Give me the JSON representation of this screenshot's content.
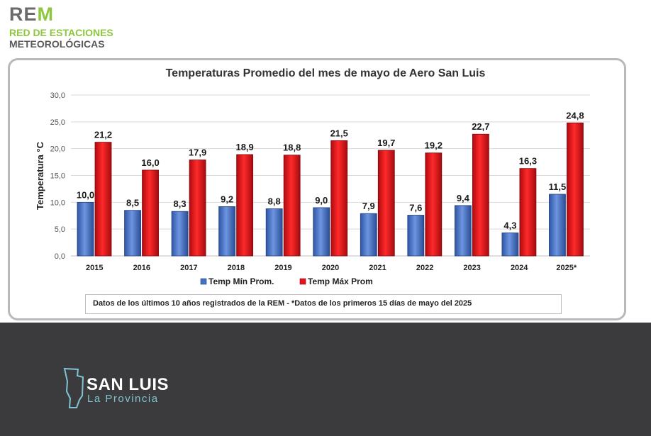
{
  "header": {
    "logo_main": "RE",
    "logo_accent": "M",
    "logo_line1": "RED DE ESTACIONES",
    "logo_line2": "METEOROLÓGICAS"
  },
  "chart_data": {
    "type": "bar",
    "title": "Temperaturas Promedio del mes de mayo de Aero San Luis",
    "ylabel": "Temperatura °C",
    "xlabel": "",
    "ylim": [
      0,
      30
    ],
    "yticks": [
      "0,0",
      "5,0",
      "10,0",
      "15,0",
      "20,0",
      "25,0",
      "30,0"
    ],
    "ytick_values": [
      0,
      5,
      10,
      15,
      20,
      25,
      30
    ],
    "categories": [
      "2015",
      "2016",
      "2017",
      "2018",
      "2019",
      "2020",
      "2021",
      "2022",
      "2023",
      "2024",
      "2025*"
    ],
    "series": [
      {
        "name": "Temp Mín Prom.",
        "color": "#4472c4",
        "values": [
          10.0,
          8.5,
          8.3,
          9.2,
          8.8,
          9.0,
          7.9,
          7.6,
          9.4,
          4.3,
          11.5
        ],
        "labels": [
          "10,0",
          "8,5",
          "8,3",
          "9,2",
          "8,8",
          "9,0",
          "7,9",
          "7,6",
          "9,4",
          "4,3",
          "11,5"
        ]
      },
      {
        "name": "Temp Máx Prom",
        "color": "#e8131a",
        "values": [
          21.2,
          16.0,
          17.9,
          18.9,
          18.8,
          21.5,
          19.7,
          19.2,
          22.7,
          16.3,
          24.8
        ],
        "labels": [
          "21,2",
          "16,0",
          "17,9",
          "18,9",
          "18,8",
          "21,5",
          "19,7",
          "19,2",
          "22,7",
          "16,3",
          "24,8"
        ]
      }
    ],
    "grid": true,
    "legend": "bottom"
  },
  "note": "Datos de los últimos 10 años registrados de la REM  - *Datos de los primeros 15 días de mayo del 2025",
  "footer": {
    "brand_name": "SAN LUIS",
    "brand_sub": "La Provincia"
  }
}
